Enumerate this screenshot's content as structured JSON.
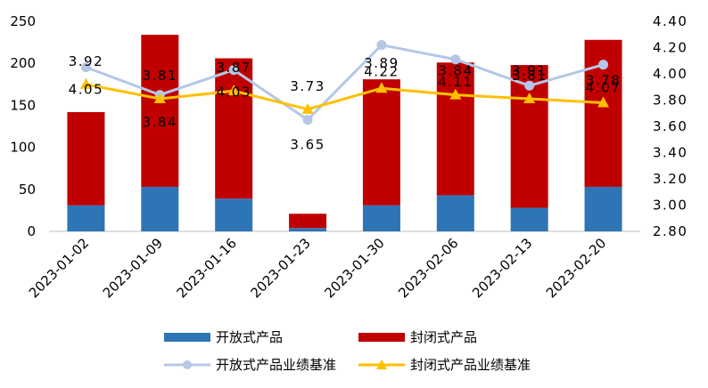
{
  "chart_data": {
    "type": "bar+line",
    "categories": [
      "2023-01-02",
      "2023-01-09",
      "2023-01-16",
      "2023-01-23",
      "2023-01-30",
      "2023-02-06",
      "2023-02-13",
      "2023-02-20"
    ],
    "bar_series": [
      {
        "name": "开放式产品",
        "color": "#2e75b6",
        "values": [
          31,
          53,
          39,
          4,
          31,
          43,
          28,
          53
        ]
      },
      {
        "name": "封闭式产品",
        "color": "#c00000",
        "values": [
          111,
          181,
          167,
          17,
          150,
          158,
          170,
          175
        ]
      }
    ],
    "line_series": [
      {
        "name": "开放式产品业绩基准",
        "color": "#b4c7e7",
        "marker": "circle",
        "values": [
          4.05,
          3.84,
          4.03,
          3.65,
          4.22,
          4.11,
          3.91,
          4.07
        ],
        "labels": [
          "4.05",
          "3.84",
          "4.03",
          "3.65",
          "4.22",
          "4.11",
          "3.91",
          "4.07"
        ]
      },
      {
        "name": "封闭式产品业绩基准",
        "color": "#ffc000",
        "marker": "triangle",
        "values": [
          3.92,
          3.81,
          3.87,
          3.73,
          3.89,
          3.84,
          3.81,
          3.78
        ],
        "labels": [
          "3.92",
          "3.81",
          "3.87",
          "3.73",
          "3.89",
          "3.84",
          "3.81",
          "3.78"
        ]
      }
    ],
    "y_left": {
      "min": 0,
      "max": 250,
      "ticks": [
        "0",
        "50",
        "100",
        "150",
        "200",
        "250"
      ]
    },
    "y_right": {
      "min": 2.8,
      "max": 4.4,
      "ticks": [
        "2.80",
        "3.00",
        "3.20",
        "3.40",
        "3.60",
        "3.80",
        "4.00",
        "4.20",
        "4.40"
      ]
    },
    "title": "",
    "xlabel": "",
    "ylabel": "",
    "legend_position": "bottom"
  }
}
